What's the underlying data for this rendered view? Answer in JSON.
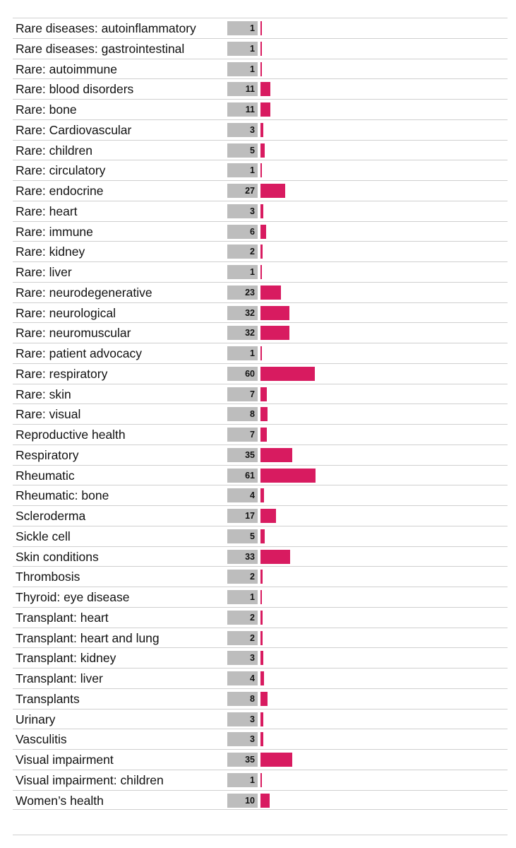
{
  "chart_data": {
    "type": "bar",
    "orientation": "horizontal",
    "categories": [
      "Rare diseases: autoinflammatory",
      "Rare diseases: gastrointestinal",
      "Rare: autoimmune",
      "Rare: blood disorders",
      "Rare: bone",
      "Rare: Cardiovascular",
      "Rare: children",
      "Rare: circulatory",
      "Rare: endocrine",
      "Rare: heart",
      "Rare: immune",
      "Rare: kidney",
      "Rare: liver",
      "Rare: neurodegenerative",
      "Rare: neurological",
      "Rare: neuromuscular",
      "Rare: patient advocacy",
      "Rare: respiratory",
      "Rare: skin",
      "Rare: visual",
      "Reproductive health",
      "Respiratory",
      "Rheumatic",
      "Rheumatic: bone",
      "Scleroderma",
      "Sickle cell",
      "Skin conditions",
      "Thrombosis",
      "Thyroid: eye disease",
      "Transplant: heart",
      "Transplant: heart and lung",
      "Transplant: kidney",
      "Transplant: liver",
      "Transplants",
      "Urinary",
      "Vasculitis",
      "Visual impairment",
      "Visual impairment: children",
      "Women’s health"
    ],
    "values": [
      1,
      1,
      1,
      11,
      11,
      3,
      5,
      1,
      27,
      3,
      6,
      2,
      1,
      23,
      32,
      32,
      1,
      60,
      7,
      8,
      7,
      35,
      61,
      4,
      17,
      5,
      33,
      2,
      1,
      2,
      2,
      3,
      4,
      8,
      3,
      3,
      35,
      1,
      10
    ],
    "xlim": [
      0,
      61
    ],
    "grid": false,
    "legend": "none",
    "colors": {
      "bar": "#d81b60",
      "count_box": "#bdbdbd",
      "rule": "#cfcfcf"
    }
  }
}
